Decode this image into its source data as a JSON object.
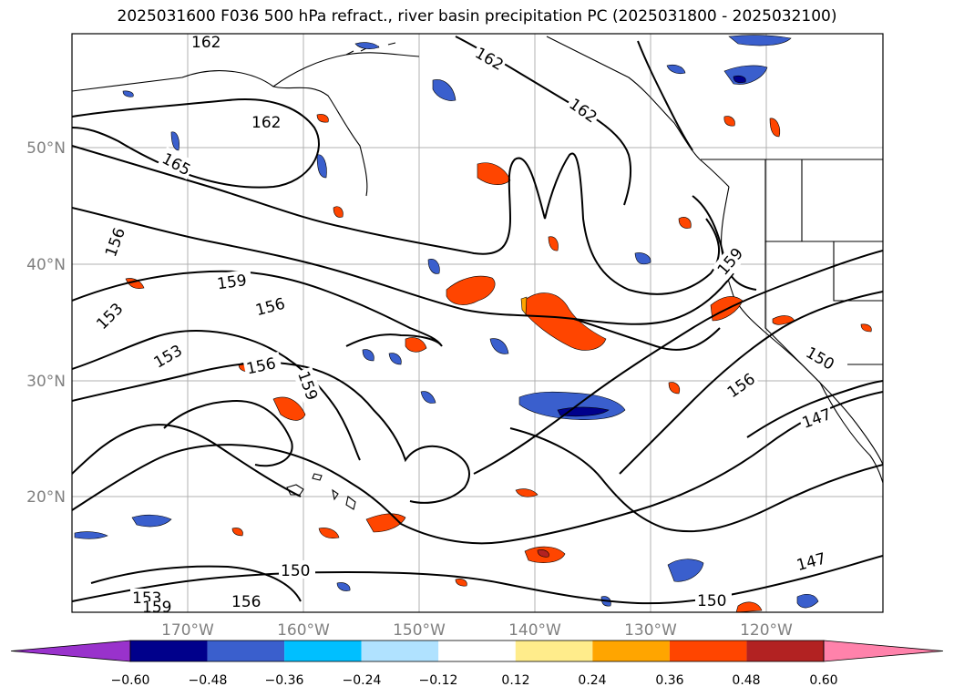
{
  "title": "2025031600 F036 500 hPa refract., river basin precipitation PC (2025031800 - 2025032100)",
  "lat_labels": [
    "50°N",
    "40°N",
    "30°N",
    "20°N"
  ],
  "lon_labels": [
    "170°W",
    "160°W",
    "150°W",
    "140°W",
    "130°W",
    "120°W"
  ],
  "contour_labels": [
    "162",
    "162",
    "162",
    "165",
    "162",
    "156",
    "159",
    "153",
    "156",
    "153",
    "156",
    "159",
    "159",
    "150",
    "156",
    "147",
    "147",
    "153",
    "159",
    "150",
    "156",
    "150"
  ],
  "colorbar": {
    "ticks": [
      "−0.60",
      "−0.48",
      "−0.36",
      "−0.24",
      "−0.12",
      "0.12",
      "0.24",
      "0.36",
      "0.48",
      "0.60"
    ],
    "colors": [
      "#9932CC",
      "#00008B",
      "#3A5FCD",
      "#00BFFF",
      "#B0E2FF",
      "#FFFFFF",
      "#FFEC8B",
      "#FFA500",
      "#FF4500",
      "#B22222",
      "#FF82AB"
    ]
  }
}
